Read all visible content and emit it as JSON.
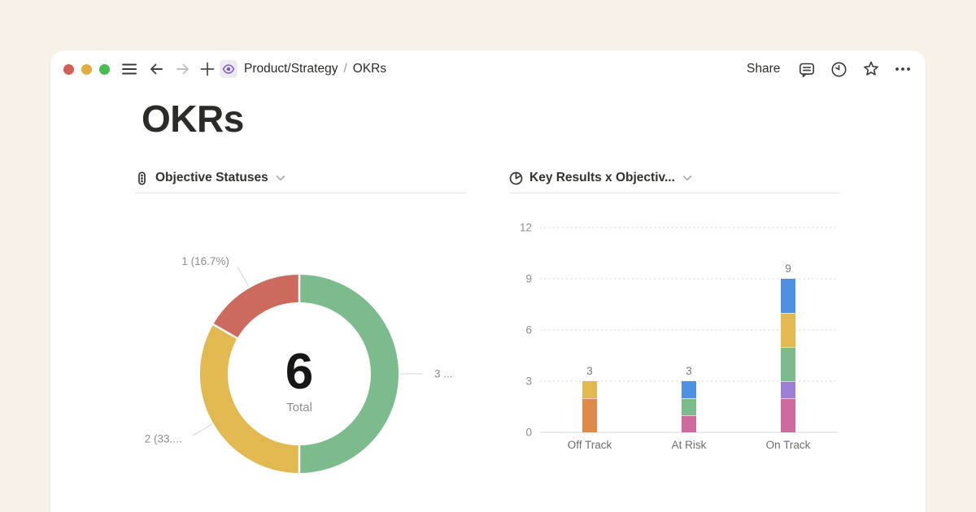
{
  "colors": {
    "page_background": "#f7f1e7",
    "card_background": "#ffffff",
    "accent_purple": "#7e58c7",
    "grid_line": "#d4d3d0",
    "muted_text": "#8e8d8a"
  },
  "window": {
    "traffic_lights": [
      "#d25f56",
      "#e3ae3c",
      "#4bbb55"
    ],
    "left_icons": [
      "menu-icon",
      "back-arrow-icon",
      "forward-arrow-icon",
      "new-page-plus-icon",
      "eye-page-icon"
    ],
    "breadcrumb": {
      "parent": "Product/Strategy",
      "separator": "/",
      "current": "OKRs"
    },
    "share_label": "Share",
    "right_icons": [
      "comments-icon",
      "updates-clock-icon",
      "favorite-star-icon",
      "more-ellipsis-icon"
    ]
  },
  "page": {
    "title": "OKRs"
  },
  "chart_data": [
    {
      "type": "pie",
      "variant": "donut",
      "title": "Objective Statuses",
      "icon": "traffic-light-icon",
      "center_value": "6",
      "center_label": "Total",
      "start": "top",
      "direction": "clockwise",
      "slices": [
        {
          "label": "3 ...",
          "value": 3,
          "percent": 50.0,
          "color": "#7cbc8c"
        },
        {
          "label": "2 (33....",
          "value": 2,
          "percent": 33.3,
          "color": "#e2b950"
        },
        {
          "label": "1 (16.7%)",
          "value": 1,
          "percent": 16.7,
          "color": "#cb6a5d"
        }
      ]
    },
    {
      "type": "bar",
      "variant": "stacked",
      "title": "Key Results x Objectiv...",
      "icon": "pie-chart-icon",
      "categories": [
        "Off Track",
        "At Risk",
        "On Track"
      ],
      "y_ticks": [
        0,
        3,
        6,
        9,
        12
      ],
      "ylim": [
        0,
        12
      ],
      "grid": "dotted",
      "legend": "none",
      "bars": [
        {
          "category": "Off Track",
          "total": 3,
          "segments": [
            {
              "value": 2,
              "color": "#dd8a4b"
            },
            {
              "value": 1,
              "color": "#e2b950"
            }
          ]
        },
        {
          "category": "At Risk",
          "total": 3,
          "segments": [
            {
              "value": 1,
              "color": "#cf6a9e"
            },
            {
              "value": 1,
              "color": "#7cbc8c"
            },
            {
              "value": 1,
              "color": "#4f90e0"
            }
          ]
        },
        {
          "category": "On Track",
          "total": 9,
          "segments": [
            {
              "value": 2,
              "color": "#cf6a9e"
            },
            {
              "value": 1,
              "color": "#9c7ed2"
            },
            {
              "value": 2,
              "color": "#7cbc8c"
            },
            {
              "value": 2,
              "color": "#e2b950"
            },
            {
              "value": 2,
              "color": "#4f90e0"
            }
          ]
        }
      ]
    }
  ]
}
